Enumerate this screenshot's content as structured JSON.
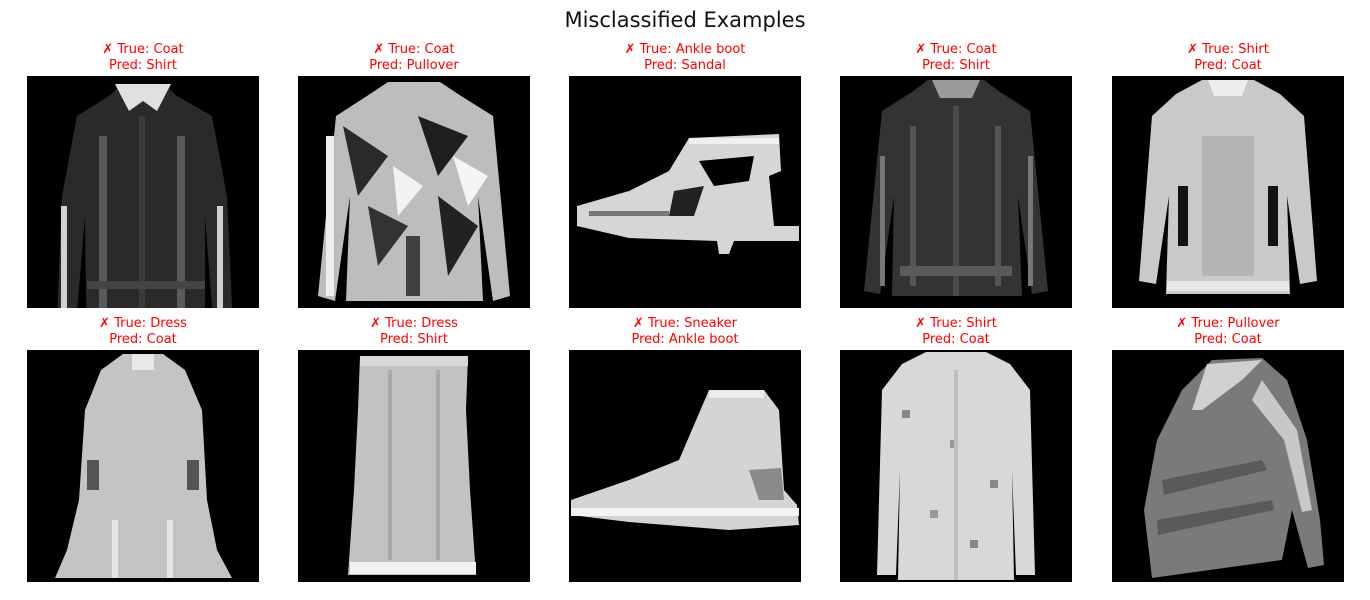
{
  "figure": {
    "title": "Misclassified Examples"
  },
  "colors": {
    "label": "#ff0000",
    "background": "#000000"
  },
  "examples": [
    {
      "true_label": "✗ True: Coat",
      "pred_label": "Pred: Shirt",
      "depicted": "coat-icon",
      "tone": "dark"
    },
    {
      "true_label": "✗ True: Coat",
      "pred_label": "Pred: Pullover",
      "depicted": "coat-icon",
      "tone": "pattern"
    },
    {
      "true_label": "✗ True: Ankle boot",
      "pred_label": "Pred: Sandal",
      "depicted": "ankle-boot-icon",
      "tone": "light"
    },
    {
      "true_label": "✗ True: Coat",
      "pred_label": "Pred: Shirt",
      "depicted": "coat-icon",
      "tone": "dark"
    },
    {
      "true_label": "✗ True: Shirt",
      "pred_label": "Pred: Coat",
      "depicted": "shirt-icon",
      "tone": "light"
    },
    {
      "true_label": "✗ True: Dress",
      "pred_label": "Pred: Coat",
      "depicted": "dress-icon",
      "tone": "light"
    },
    {
      "true_label": "✗ True: Dress",
      "pred_label": "Pred: Shirt",
      "depicted": "dress-icon",
      "tone": "light"
    },
    {
      "true_label": "✗ True: Sneaker",
      "pred_label": "Pred: Ankle boot",
      "depicted": "sneaker-icon",
      "tone": "light"
    },
    {
      "true_label": "✗ True: Shirt",
      "pred_label": "Pred: Coat",
      "depicted": "shirt-icon",
      "tone": "light"
    },
    {
      "true_label": "✗ True: Pullover",
      "pred_label": "Pred: Coat",
      "depicted": "pullover-icon",
      "tone": "mid"
    }
  ]
}
